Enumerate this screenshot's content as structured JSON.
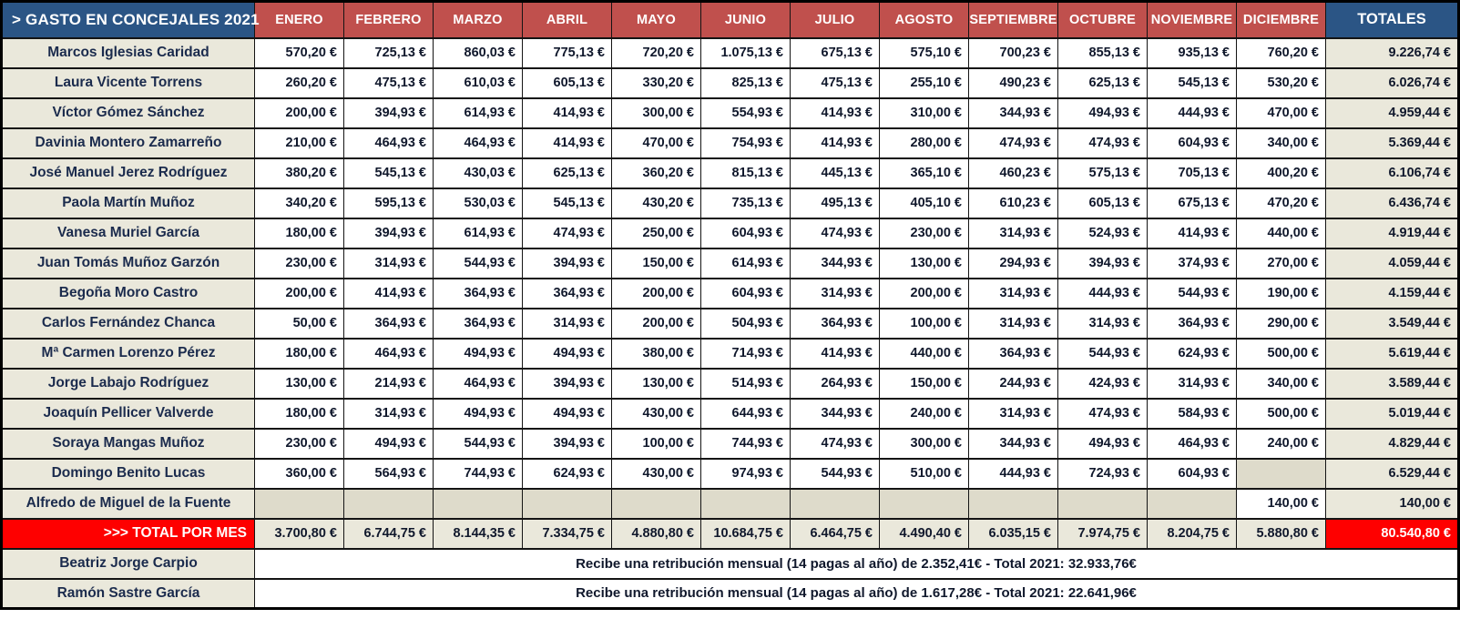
{
  "colors": {
    "header_blue": "#2b5585",
    "month_red": "#c0504d",
    "row_beige": "#eae8db",
    "empty_cell_beige": "#dedbcb",
    "total_red": "#fe0000",
    "name_text": "#1b2b4d",
    "value_text": "#10182c",
    "header_text": "#ffffff"
  },
  "chart_data": {
    "type": "table",
    "title": "> GASTO EN CONCEJALES 2021",
    "totals_column": "TOTALES",
    "currency_suffix": " €",
    "categories": [
      "ENERO",
      "FEBRERO",
      "MARZO",
      "ABRIL",
      "MAYO",
      "JUNIO",
      "JULIO",
      "AGOSTO",
      "SEPTIEMBRE",
      "OCTUBRE",
      "NOVIEMBRE",
      "DICIEMBRE"
    ],
    "series": [
      {
        "name": "Marcos Iglesias Caridad",
        "values": [
          570.2,
          725.13,
          860.03,
          775.13,
          720.2,
          1075.13,
          675.13,
          575.1,
          700.23,
          855.13,
          935.13,
          760.2
        ],
        "total": 9226.74
      },
      {
        "name": "Laura Vicente Torrens",
        "values": [
          260.2,
          475.13,
          610.03,
          605.13,
          330.2,
          825.13,
          475.13,
          255.1,
          490.23,
          625.13,
          545.13,
          530.2
        ],
        "total": 6026.74
      },
      {
        "name": "Víctor Gómez Sánchez",
        "values": [
          200.0,
          394.93,
          614.93,
          414.93,
          300.0,
          554.93,
          414.93,
          310.0,
          344.93,
          494.93,
          444.93,
          470.0
        ],
        "total": 4959.44
      },
      {
        "name": "Davinia Montero Zamarreño",
        "values": [
          210.0,
          464.93,
          464.93,
          414.93,
          470.0,
          754.93,
          414.93,
          280.0,
          474.93,
          474.93,
          604.93,
          340.0
        ],
        "total": 5369.44
      },
      {
        "name": "José Manuel Jerez Rodríguez",
        "values": [
          380.2,
          545.13,
          430.03,
          625.13,
          360.2,
          815.13,
          445.13,
          365.1,
          460.23,
          575.13,
          705.13,
          400.2
        ],
        "total": 6106.74
      },
      {
        "name": "Paola Martín Muñoz",
        "values": [
          340.2,
          595.13,
          530.03,
          545.13,
          430.2,
          735.13,
          495.13,
          405.1,
          610.23,
          605.13,
          675.13,
          470.2
        ],
        "total": 6436.74
      },
      {
        "name": "Vanesa Muriel García",
        "values": [
          180.0,
          394.93,
          614.93,
          474.93,
          250.0,
          604.93,
          474.93,
          230.0,
          314.93,
          524.93,
          414.93,
          440.0
        ],
        "total": 4919.44
      },
      {
        "name": "Juan Tomás Muñoz Garzón",
        "values": [
          230.0,
          314.93,
          544.93,
          394.93,
          150.0,
          614.93,
          344.93,
          130.0,
          294.93,
          394.93,
          374.93,
          270.0
        ],
        "total": 4059.44
      },
      {
        "name": "Begoña Moro Castro",
        "values": [
          200.0,
          414.93,
          364.93,
          364.93,
          200.0,
          604.93,
          314.93,
          200.0,
          314.93,
          444.93,
          544.93,
          190.0
        ],
        "total": 4159.44
      },
      {
        "name": "Carlos Fernández Chanca",
        "values": [
          50.0,
          364.93,
          364.93,
          314.93,
          200.0,
          504.93,
          364.93,
          100.0,
          314.93,
          314.93,
          364.93,
          290.0
        ],
        "total": 3549.44
      },
      {
        "name": "Mª Carmen Lorenzo Pérez",
        "values": [
          180.0,
          464.93,
          494.93,
          494.93,
          380.0,
          714.93,
          414.93,
          440.0,
          364.93,
          544.93,
          624.93,
          500.0
        ],
        "total": 5619.44
      },
      {
        "name": "Jorge Labajo Rodríguez",
        "values": [
          130.0,
          214.93,
          464.93,
          394.93,
          130.0,
          514.93,
          264.93,
          150.0,
          244.93,
          424.93,
          314.93,
          340.0
        ],
        "total": 3589.44
      },
      {
        "name": "Joaquín Pellicer Valverde",
        "values": [
          180.0,
          314.93,
          494.93,
          494.93,
          430.0,
          644.93,
          344.93,
          240.0,
          314.93,
          474.93,
          584.93,
          500.0
        ],
        "total": 5019.44
      },
      {
        "name": "Soraya Mangas Muñoz",
        "values": [
          230.0,
          494.93,
          544.93,
          394.93,
          100.0,
          744.93,
          474.93,
          300.0,
          344.93,
          494.93,
          464.93,
          240.0
        ],
        "total": 4829.44
      },
      {
        "name": "Domingo Benito Lucas",
        "values": [
          360.0,
          564.93,
          744.93,
          624.93,
          430.0,
          974.93,
          544.93,
          510.0,
          444.93,
          724.93,
          604.93,
          null
        ],
        "total": 6529.44
      },
      {
        "name": "Alfredo de Miguel de la Fuente",
        "values": [
          null,
          null,
          null,
          null,
          null,
          null,
          null,
          null,
          null,
          null,
          null,
          140.0
        ],
        "total": 140.0
      }
    ],
    "total_row": {
      "label": ">>> TOTAL POR MES",
      "values": [
        3700.8,
        6744.75,
        8144.35,
        7334.75,
        4880.8,
        10684.75,
        6464.75,
        4490.4,
        6035.15,
        7974.75,
        8204.75,
        5880.8
      ],
      "total": 80540.8
    },
    "note_rows": [
      {
        "name": "Beatriz Jorge Carpio",
        "text": "Recibe una retribución mensual (14 pagas al año) de 2.352,41€ - Total 2021: 32.933,76€"
      },
      {
        "name": "Ramón Sastre García",
        "text": "Recibe una retribución mensual (14 pagas al año) de 1.617,28€ - Total 2021: 22.641,96€"
      }
    ]
  }
}
